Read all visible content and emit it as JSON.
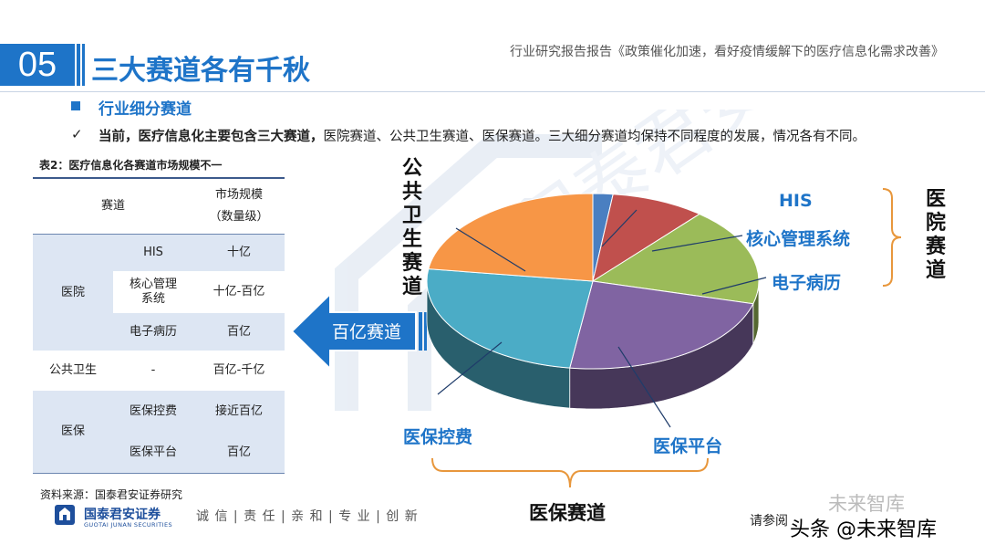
{
  "header": {
    "section_number": "05",
    "section_title": "三大赛道各有千秋",
    "report_note": "行业研究报告报告《政策催化加速，看好疫情缓解下的医疗信息化需求改善》"
  },
  "subsection": {
    "title": "行业细分赛道",
    "check_mark": "✓",
    "text_bold": "当前，医疗信息化主要包含三大赛道，",
    "text_normal": "医院赛道、公共卫生赛道、医保赛道。三大细分赛道均保持不同程度的发展，情况各有不同。"
  },
  "table": {
    "caption": "表2：医疗信息化各赛道市场规模不一",
    "header_col1": "赛道",
    "header_col2_line1": "市场规模",
    "header_col2_line2": "（数量级）",
    "group_hospital": "医院",
    "group_public": "公共卫生",
    "group_insurance": "医保",
    "rows": [
      {
        "sub": "HIS",
        "size": "十亿"
      },
      {
        "sub": "核心管理系统",
        "size": "十亿-百亿"
      },
      {
        "sub": "电子病历",
        "size": "百亿"
      },
      {
        "sub": "-",
        "size": "百亿-千亿"
      },
      {
        "sub": "医保控费",
        "size": "接近百亿"
      },
      {
        "sub": "医保平台",
        "size": "百亿"
      }
    ],
    "source": "资料来源：国泰君安证券研究"
  },
  "chart": {
    "arrow_label": "百亿赛道",
    "labels": {
      "his": "HIS",
      "core": "核心管理系统",
      "emr": "电子病历",
      "control": "医保控费",
      "platform": "医保平台",
      "public": "公共卫生赛道",
      "hospital": "医院赛道",
      "insurance": "医保赛道"
    },
    "colors": {
      "his": "#4a7fc1",
      "core": "#c0504d",
      "emr": "#9bbb59",
      "platform": "#8064a2",
      "control": "#4bacc6",
      "public": "#f79646"
    }
  },
  "footer": {
    "brand": "国泰君安证券",
    "brand_en": "GUOTAI JUNAN SECURITIES",
    "slogan": "诚 信 | 责 任 | 亲 和 | 专 业 | 创 新",
    "ref": "请参阅",
    "watermark": "头条 @未来智库",
    "watermark2": "未来智库"
  }
}
